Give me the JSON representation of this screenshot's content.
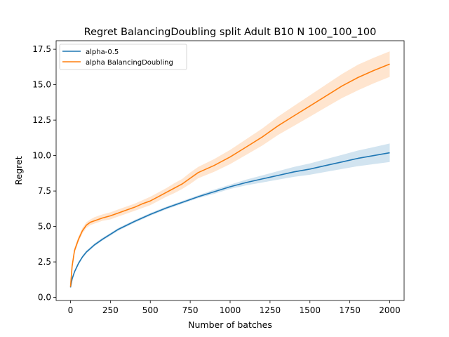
{
  "chart_data": {
    "type": "line",
    "title": "Regret BalancingDoubling split Adult B10 N 100_100_100",
    "xlabel": "Number of batches",
    "ylabel": "Regret",
    "xlim": [
      -90,
      2090
    ],
    "ylim": [
      -0.22,
      18.1
    ],
    "xticks": [
      0,
      250,
      500,
      750,
      1000,
      1250,
      1500,
      1750,
      2000
    ],
    "xtick_labels": [
      "0",
      "250",
      "500",
      "750",
      "1000",
      "1250",
      "1500",
      "1750",
      "2000"
    ],
    "yticks": [
      0.0,
      2.5,
      5.0,
      7.5,
      10.0,
      12.5,
      15.0,
      17.5
    ],
    "ytick_labels": [
      "0.0",
      "2.5",
      "5.0",
      "7.5",
      "10.0",
      "12.5",
      "15.0",
      "17.5"
    ],
    "grid": false,
    "legend_position": "upper-left",
    "series": [
      {
        "name": "alpha-0.5",
        "color": "#1f77b4",
        "x": [
          0,
          10,
          25,
          50,
          75,
          100,
          150,
          200,
          250,
          300,
          400,
          500,
          600,
          700,
          800,
          900,
          1000,
          1100,
          1200,
          1300,
          1400,
          1500,
          1600,
          1700,
          1800,
          1900,
          2000
        ],
        "y": [
          0.7,
          1.3,
          1.8,
          2.4,
          2.85,
          3.2,
          3.7,
          4.1,
          4.45,
          4.8,
          5.35,
          5.85,
          6.3,
          6.7,
          7.1,
          7.45,
          7.8,
          8.1,
          8.35,
          8.6,
          8.85,
          9.05,
          9.3,
          9.55,
          9.8,
          10.0,
          10.2
        ],
        "lower": [
          0.6,
          1.2,
          1.7,
          2.3,
          2.75,
          3.1,
          3.6,
          4.0,
          4.35,
          4.7,
          5.25,
          5.75,
          6.2,
          6.6,
          7.0,
          7.3,
          7.65,
          7.9,
          8.1,
          8.3,
          8.5,
          8.65,
          8.85,
          9.05,
          9.25,
          9.4,
          9.55
        ],
        "upper": [
          0.8,
          1.4,
          1.9,
          2.5,
          2.95,
          3.3,
          3.8,
          4.2,
          4.55,
          4.9,
          5.45,
          5.95,
          6.4,
          6.8,
          7.2,
          7.6,
          7.95,
          8.3,
          8.6,
          8.9,
          9.2,
          9.45,
          9.75,
          10.05,
          10.35,
          10.6,
          10.85
        ]
      },
      {
        "name": "alpha BalancingDoubling",
        "color": "#ff7f0e",
        "x": [
          0,
          10,
          25,
          50,
          75,
          100,
          125,
          150,
          200,
          250,
          300,
          350,
          400,
          450,
          500,
          550,
          600,
          650,
          700,
          750,
          800,
          900,
          1000,
          1100,
          1200,
          1300,
          1400,
          1500,
          1600,
          1700,
          1800,
          1900,
          2000
        ],
        "y": [
          0.75,
          2.2,
          3.3,
          4.1,
          4.7,
          5.1,
          5.3,
          5.4,
          5.6,
          5.75,
          5.95,
          6.15,
          6.35,
          6.6,
          6.8,
          7.1,
          7.4,
          7.7,
          8.0,
          8.4,
          8.8,
          9.3,
          9.9,
          10.6,
          11.3,
          12.1,
          12.8,
          13.5,
          14.2,
          14.9,
          15.5,
          16.0,
          16.45
        ],
        "lower": [
          0.6,
          2.0,
          3.1,
          3.9,
          4.5,
          4.9,
          5.1,
          5.2,
          5.4,
          5.5,
          5.7,
          5.9,
          6.1,
          6.3,
          6.5,
          6.8,
          7.1,
          7.35,
          7.65,
          8.0,
          8.4,
          8.85,
          9.4,
          10.05,
          10.7,
          11.45,
          12.1,
          12.75,
          13.4,
          14.05,
          14.6,
          15.1,
          15.55
        ],
        "upper": [
          0.9,
          2.4,
          3.5,
          4.3,
          4.9,
          5.3,
          5.5,
          5.65,
          5.85,
          6.0,
          6.2,
          6.4,
          6.6,
          6.85,
          7.1,
          7.4,
          7.7,
          8.05,
          8.35,
          8.8,
          9.2,
          9.75,
          10.4,
          11.15,
          11.9,
          12.75,
          13.5,
          14.25,
          15.0,
          15.75,
          16.4,
          16.9,
          17.35
        ]
      }
    ]
  }
}
